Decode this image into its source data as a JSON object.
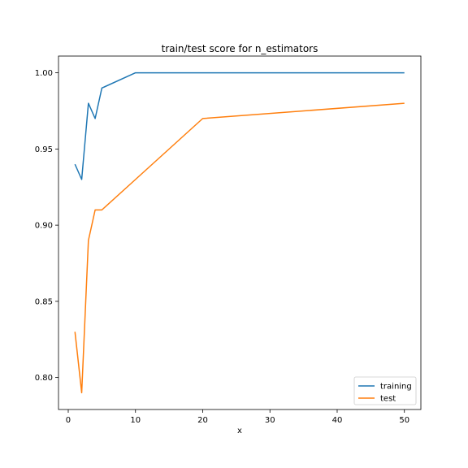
{
  "chart_data": {
    "type": "line",
    "title": "train/test score for n_estimators",
    "xlabel": "x",
    "ylabel": "",
    "xlim": [
      -1.45,
      52.45
    ],
    "ylim": [
      0.779,
      1.011
    ],
    "xticks": [
      0,
      10,
      20,
      30,
      40,
      50
    ],
    "xtick_labels": [
      "0",
      "10",
      "20",
      "30",
      "40",
      "50"
    ],
    "yticks": [
      0.8,
      0.85,
      0.9,
      0.95,
      1.0
    ],
    "ytick_labels": [
      "0.80",
      "0.85",
      "0.90",
      "0.95",
      "1.00"
    ],
    "grid": false,
    "legend_position": "lower-right",
    "x": [
      1,
      2,
      3,
      4,
      5,
      10,
      20,
      50
    ],
    "series": [
      {
        "name": "training",
        "color": "#1f77b4",
        "values": [
          0.94,
          0.93,
          0.98,
          0.97,
          0.99,
          1.0,
          1.0,
          1.0
        ]
      },
      {
        "name": "test",
        "color": "#ff7f0e",
        "values": [
          0.83,
          0.79,
          0.89,
          0.91,
          0.91,
          0.93,
          0.97,
          0.98
        ]
      }
    ]
  }
}
